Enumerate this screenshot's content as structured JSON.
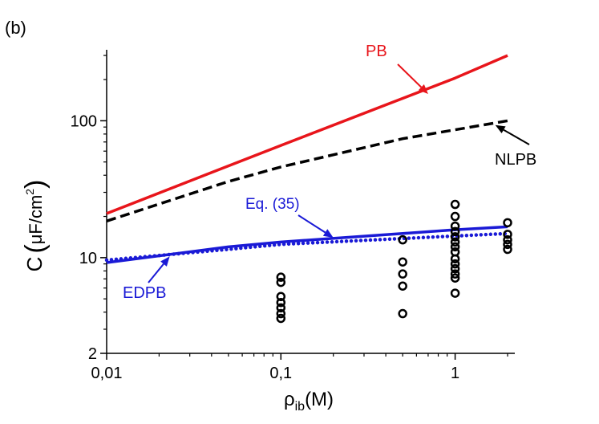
{
  "panel_label": "(b)",
  "chart_data": {
    "type": "line",
    "xscale": "log",
    "yscale": "log",
    "xlim": [
      0.01,
      2.2
    ],
    "ylim": [
      2,
      330
    ],
    "xlabel": {
      "main": "ρ",
      "sub": "ib",
      "tail": "(M)"
    },
    "ylabel": {
      "main": "C",
      "unit": "μF/cm",
      "sup": "2"
    },
    "x_ticks": [
      {
        "value": 0.01,
        "label": "0,01"
      },
      {
        "value": 0.1,
        "label": "0,1"
      },
      {
        "value": 1,
        "label": "1"
      }
    ],
    "y_ticks": [
      {
        "value": 2,
        "label": "2"
      },
      {
        "value": 10,
        "label": "10"
      },
      {
        "value": 100,
        "label": "100"
      }
    ],
    "series": [
      {
        "name": "PB",
        "color": "#e8151b",
        "style": "solid",
        "x": [
          0.01,
          0.1,
          1,
          2
        ],
        "y": [
          21,
          66,
          205,
          300
        ]
      },
      {
        "name": "NLPB",
        "color": "#000000",
        "style": "dashed",
        "x": [
          0.01,
          0.05,
          0.1,
          0.5,
          1,
          2
        ],
        "y": [
          18.5,
          36,
          46,
          74,
          86,
          100
        ]
      },
      {
        "name": "Eq. (35)",
        "color": "#1a1ad6",
        "style": "solid",
        "x": [
          0.01,
          0.05,
          0.1,
          0.5,
          1,
          2
        ],
        "y": [
          9.2,
          12,
          13,
          15,
          16,
          16.8
        ]
      },
      {
        "name": "EDPB",
        "color": "#1a1ad6",
        "style": "dotted",
        "x": [
          0.01,
          0.05,
          0.1,
          0.5,
          1,
          2
        ],
        "y": [
          9.6,
          11.5,
          12.5,
          13.8,
          14.4,
          15
        ]
      },
      {
        "name": "data",
        "color": "#000000",
        "style": "markers",
        "points": [
          [
            0.1,
            7.2
          ],
          [
            0.1,
            6.6
          ],
          [
            0.1,
            5.2
          ],
          [
            0.1,
            4.7
          ],
          [
            0.1,
            4.3
          ],
          [
            0.1,
            3.9
          ],
          [
            0.1,
            3.6
          ],
          [
            0.5,
            13.5
          ],
          [
            0.5,
            9.3
          ],
          [
            0.5,
            7.6
          ],
          [
            0.5,
            6.2
          ],
          [
            0.5,
            3.9
          ],
          [
            1,
            24.5
          ],
          [
            1,
            20
          ],
          [
            1,
            17
          ],
          [
            1,
            15.5
          ],
          [
            1,
            14.2
          ],
          [
            1,
            13
          ],
          [
            1,
            12
          ],
          [
            1,
            11
          ],
          [
            1,
            9.8
          ],
          [
            1,
            9
          ],
          [
            1,
            8.3
          ],
          [
            1,
            7.6
          ],
          [
            1,
            7.1
          ],
          [
            1,
            5.5
          ],
          [
            2,
            18
          ],
          [
            2,
            14.8
          ],
          [
            2,
            13.5
          ],
          [
            2,
            12.5
          ],
          [
            2,
            11.5
          ]
        ]
      }
    ],
    "annotations": [
      {
        "label": "PB",
        "color": "#e8151b",
        "arrow_to": [
          0.7,
          157
        ]
      },
      {
        "label": "NLPB",
        "color": "#000000",
        "arrow_to": [
          1.7,
          93
        ]
      },
      {
        "label": "Eq. (35)",
        "color": "#1a1ad6",
        "arrow_to": [
          0.2,
          14
        ]
      },
      {
        "label": "EDPB",
        "color": "#1a1ad6",
        "arrow_to": [
          0.023,
          10.2
        ]
      }
    ]
  }
}
